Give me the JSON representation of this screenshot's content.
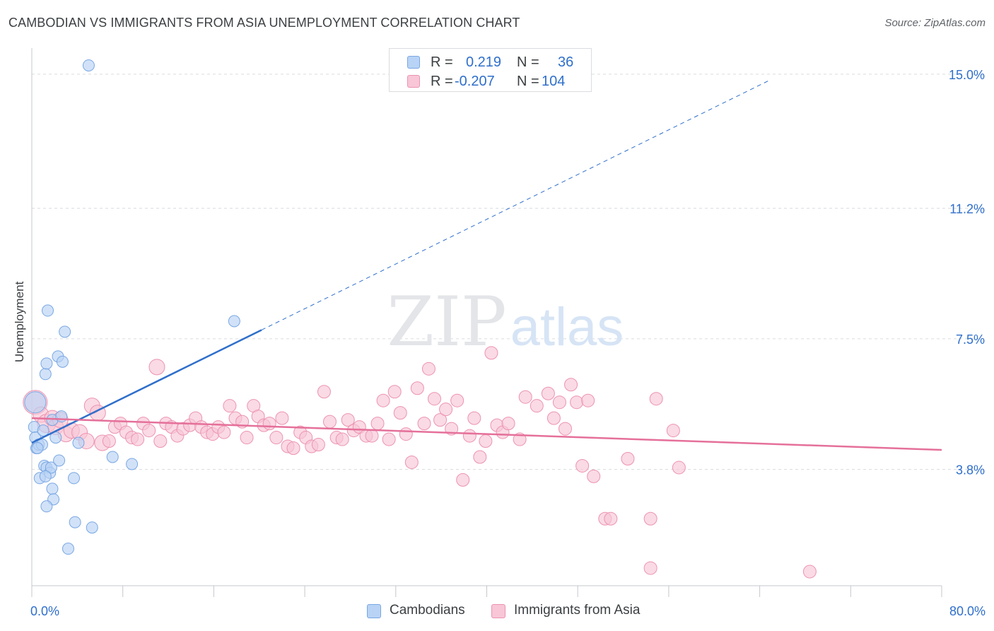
{
  "header": {
    "title": "CAMBODIAN VS IMMIGRANTS FROM ASIA UNEMPLOYMENT CORRELATION CHART",
    "source": "Source: ZipAtlas.com"
  },
  "watermark": {
    "zip": "ZIP",
    "atlas": "atlas"
  },
  "colors": {
    "blue_fill": "#b8d3f5",
    "blue_stroke": "#7aa7e3",
    "blue_line": "#2f6fcb",
    "pink_fill": "#f8c6d6",
    "pink_stroke": "#ec93b1",
    "pink_line": "#e5709a",
    "tick_text": "#2f6fcb",
    "grid": "#dadce0"
  },
  "legend_top": {
    "rows": [
      {
        "r_label": "R =",
        "r_value": "0.219",
        "n_label": "N =",
        "n_value": "36"
      },
      {
        "r_label": "R =",
        "r_value": "-0.207",
        "n_label": "N =",
        "n_value": "104"
      }
    ]
  },
  "legend_bottom": {
    "items": [
      "Cambodians",
      "Immigrants from Asia"
    ]
  },
  "chart_data": {
    "type": "scatter",
    "title": "CAMBODIAN VS IMMIGRANTS FROM ASIA UNEMPLOYMENT CORRELATION CHART",
    "xlabel": "",
    "ylabel": "Unemployment",
    "xlim": [
      0,
      80
    ],
    "ylim": [
      0.5,
      15.5
    ],
    "x_tick_labels": [
      "0.0%",
      "80.0%"
    ],
    "y_ticks": [
      3.8,
      7.5,
      11.2,
      15.0
    ],
    "y_tick_labels": [
      "3.8%",
      "7.5%",
      "11.2%",
      "15.0%"
    ],
    "grid": true,
    "legend_placement": "top-center",
    "series": [
      {
        "name": "Cambodians",
        "r": 0.219,
        "n": 36,
        "trend": {
          "x_start": 0,
          "y_start": 4.55,
          "x_solid_end": 20.2,
          "y_solid_end": 7.75,
          "x_dash_end": 65,
          "y_dash_end": 14.85
        },
        "points": [
          [
            5,
            15.25,
            7
          ],
          [
            0.3,
            5.7,
            14
          ],
          [
            0.2,
            5.0,
            7
          ],
          [
            0.3,
            4.7,
            7
          ],
          [
            0.4,
            4.4,
            7
          ],
          [
            0.6,
            4.5,
            7
          ],
          [
            0.9,
            4.5,
            7
          ],
          [
            1.0,
            4.9,
            7
          ],
          [
            1.2,
            6.5,
            7
          ],
          [
            1.3,
            6.8,
            7
          ],
          [
            1.4,
            8.3,
            7
          ],
          [
            2.3,
            7.0,
            7
          ],
          [
            2.7,
            6.85,
            7
          ],
          [
            2.9,
            7.7,
            7
          ],
          [
            1.8,
            5.2,
            7
          ],
          [
            2.1,
            4.7,
            7
          ],
          [
            2.6,
            5.3,
            7
          ],
          [
            1.1,
            3.9,
            7
          ],
          [
            1.3,
            3.85,
            7
          ],
          [
            1.6,
            3.7,
            7
          ],
          [
            1.7,
            3.85,
            7
          ],
          [
            2.4,
            4.05,
            7
          ],
          [
            0.7,
            3.55,
            7
          ],
          [
            1.2,
            3.6,
            7
          ],
          [
            1.8,
            3.25,
            7
          ],
          [
            1.9,
            2.95,
            7
          ],
          [
            1.3,
            2.75,
            7
          ],
          [
            3.7,
            3.55,
            7
          ],
          [
            4.1,
            4.55,
            7
          ],
          [
            7.1,
            4.15,
            7
          ],
          [
            8.8,
            3.95,
            7
          ],
          [
            3.8,
            2.3,
            7
          ],
          [
            5.3,
            2.15,
            7
          ],
          [
            3.2,
            1.55,
            7
          ],
          [
            17.8,
            8.0,
            7
          ],
          [
            0.5,
            4.4,
            7
          ]
        ]
      },
      {
        "name": "Immigrants from Asia",
        "r": -0.207,
        "n": 104,
        "trend": {
          "x_start": 0,
          "y_start": 5.25,
          "x_end": 80,
          "y_end": 4.35
        },
        "points": [
          [
            0.3,
            5.7,
            16
          ],
          [
            0.8,
            5.35,
            10
          ],
          [
            1.3,
            5.1,
            12
          ],
          [
            1.8,
            5.25,
            10
          ],
          [
            2.1,
            5.0,
            10
          ],
          [
            2.5,
            5.2,
            10
          ],
          [
            3.0,
            4.8,
            10
          ],
          [
            3.5,
            4.9,
            10
          ],
          [
            4.2,
            4.85,
            10
          ],
          [
            4.8,
            4.6,
            10
          ],
          [
            5.3,
            5.6,
            10
          ],
          [
            5.8,
            5.4,
            10
          ],
          [
            6.2,
            4.55,
            10
          ],
          [
            6.8,
            4.6,
            8
          ],
          [
            7.3,
            5.0,
            8
          ],
          [
            7.8,
            5.1,
            8
          ],
          [
            8.3,
            4.85,
            8
          ],
          [
            8.8,
            4.7,
            8
          ],
          [
            9.3,
            4.65,
            8
          ],
          [
            9.8,
            5.1,
            8
          ],
          [
            10.3,
            4.9,
            8
          ],
          [
            11.0,
            6.7,
            10
          ],
          [
            11.3,
            4.6,
            8
          ],
          [
            11.8,
            5.1,
            8
          ],
          [
            12.3,
            5.0,
            8
          ],
          [
            12.8,
            4.75,
            8
          ],
          [
            13.3,
            4.95,
            8
          ],
          [
            13.9,
            5.05,
            8
          ],
          [
            14.4,
            5.25,
            8
          ],
          [
            14.9,
            5.0,
            8
          ],
          [
            15.4,
            4.85,
            8
          ],
          [
            15.9,
            4.8,
            8
          ],
          [
            16.4,
            5.0,
            8
          ],
          [
            16.9,
            4.85,
            8
          ],
          [
            17.4,
            5.6,
            8
          ],
          [
            17.9,
            5.25,
            8
          ],
          [
            18.5,
            5.15,
            8
          ],
          [
            18.9,
            4.7,
            8
          ],
          [
            19.5,
            5.6,
            8
          ],
          [
            19.9,
            5.3,
            8
          ],
          [
            20.4,
            5.05,
            8
          ],
          [
            20.9,
            5.1,
            8
          ],
          [
            21.5,
            4.7,
            8
          ],
          [
            22.0,
            5.25,
            8
          ],
          [
            22.5,
            4.45,
            8
          ],
          [
            23.0,
            4.4,
            8
          ],
          [
            23.6,
            4.85,
            8
          ],
          [
            24.1,
            4.7,
            8
          ],
          [
            24.6,
            4.45,
            8
          ],
          [
            25.2,
            4.5,
            8
          ],
          [
            25.7,
            6.0,
            8
          ],
          [
            26.2,
            5.15,
            8
          ],
          [
            26.8,
            4.7,
            8
          ],
          [
            27.3,
            4.65,
            8
          ],
          [
            27.8,
            5.2,
            8
          ],
          [
            28.3,
            4.9,
            8
          ],
          [
            28.8,
            5.0,
            8
          ],
          [
            29.4,
            4.75,
            8
          ],
          [
            29.9,
            4.75,
            8
          ],
          [
            30.4,
            5.1,
            8
          ],
          [
            30.9,
            5.75,
            8
          ],
          [
            31.4,
            4.65,
            8
          ],
          [
            31.9,
            6.0,
            8
          ],
          [
            32.4,
            5.4,
            8
          ],
          [
            32.9,
            4.8,
            8
          ],
          [
            33.4,
            4.0,
            8
          ],
          [
            33.9,
            6.1,
            8
          ],
          [
            34.5,
            5.1,
            8
          ],
          [
            34.9,
            6.65,
            8
          ],
          [
            35.4,
            5.8,
            8
          ],
          [
            35.9,
            5.2,
            8
          ],
          [
            36.4,
            5.5,
            8
          ],
          [
            36.9,
            4.95,
            8
          ],
          [
            37.4,
            5.75,
            8
          ],
          [
            37.9,
            3.5,
            8
          ],
          [
            38.5,
            4.75,
            8
          ],
          [
            38.9,
            5.25,
            8
          ],
          [
            39.4,
            4.15,
            8
          ],
          [
            39.9,
            4.6,
            8
          ],
          [
            40.4,
            7.1,
            8
          ],
          [
            40.9,
            5.05,
            8
          ],
          [
            41.4,
            4.85,
            8
          ],
          [
            41.9,
            5.1,
            8
          ],
          [
            42.9,
            4.65,
            8
          ],
          [
            43.4,
            5.85,
            8
          ],
          [
            44.4,
            5.6,
            8
          ],
          [
            45.4,
            5.95,
            8
          ],
          [
            45.9,
            5.25,
            8
          ],
          [
            46.4,
            5.7,
            8
          ],
          [
            46.9,
            4.95,
            8
          ],
          [
            47.4,
            6.2,
            8
          ],
          [
            47.9,
            5.7,
            8
          ],
          [
            48.4,
            3.9,
            8
          ],
          [
            48.9,
            5.75,
            8
          ],
          [
            49.4,
            3.6,
            8
          ],
          [
            50.4,
            2.4,
            8
          ],
          [
            50.9,
            2.4,
            8
          ],
          [
            52.4,
            4.1,
            8
          ],
          [
            54.4,
            2.4,
            8
          ],
          [
            54.9,
            5.8,
            8
          ],
          [
            56.4,
            4.9,
            8
          ],
          [
            56.9,
            3.85,
            8
          ],
          [
            54.4,
            1.0,
            8
          ],
          [
            68.4,
            0.9,
            8
          ]
        ]
      }
    ]
  }
}
